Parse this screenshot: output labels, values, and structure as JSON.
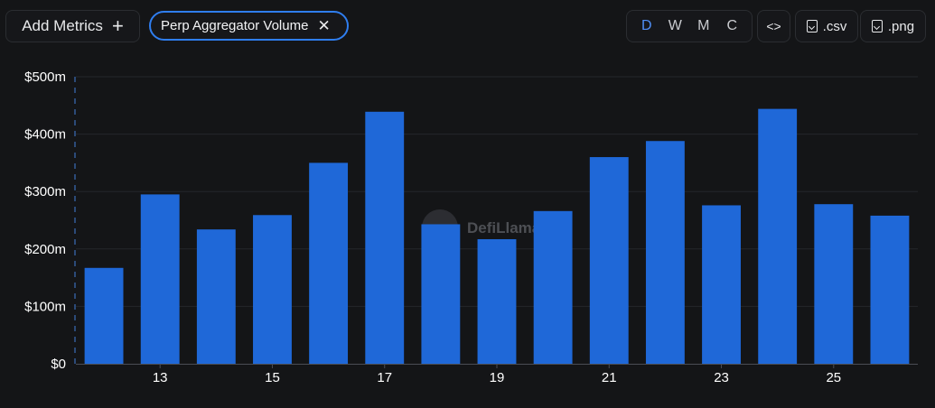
{
  "toolbar": {
    "add_metrics_label": "Add Metrics",
    "add_icon": "+",
    "metric_chip_label": "Perp Aggregator Volume",
    "remove_icon": "✕",
    "granularity": [
      "D",
      "W",
      "M",
      "C"
    ],
    "granularity_selected": "D",
    "embed_icon": "<>",
    "csv_label": ".csv",
    "png_label": ".png"
  },
  "watermark": "DefiLlama",
  "colors": {
    "background": "#141517",
    "bar": "#1f68d8",
    "accent": "#2f7ef0"
  },
  "chart_data": {
    "type": "bar",
    "series": [
      {
        "values": [
          167,
          295,
          234,
          259,
          350,
          439,
          243,
          217,
          266,
          360,
          388,
          276,
          444,
          278,
          258
        ]
      }
    ],
    "x": [
      12,
      13,
      14,
      15,
      16,
      17,
      18,
      19,
      20,
      21,
      22,
      23,
      24,
      25,
      26
    ],
    "x_tick_labels": [
      "13",
      "15",
      "17",
      "19",
      "21",
      "23",
      "25"
    ],
    "x_tick_values": [
      13,
      15,
      17,
      19,
      21,
      23,
      25
    ],
    "y_tick_labels": [
      "$0",
      "$100m",
      "$200m",
      "$300m",
      "$400m",
      "$500m"
    ],
    "y_tick_values": [
      0,
      100,
      200,
      300,
      400,
      500
    ],
    "ylim": [
      0,
      500
    ],
    "unit": "$m",
    "grid": true
  }
}
